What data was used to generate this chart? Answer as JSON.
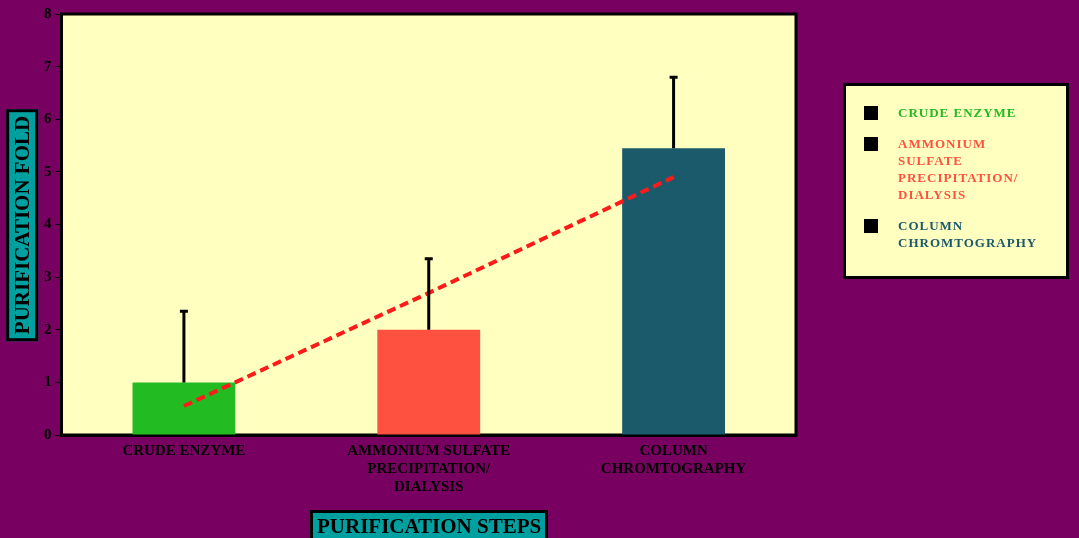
{
  "chart_data": {
    "type": "bar",
    "categories": [
      "CRUDE ENZYME",
      "AMMONIUM SULFATE PRECIPITATION/ DIALYSIS",
      "COLUMN CHROMTOGRAPHY"
    ],
    "series": [
      {
        "name": "CRUDE ENZYME",
        "color": "#22bb22",
        "values": [
          1,
          null,
          null
        ],
        "errors": [
          [
            1,
            2.35
          ],
          null,
          null
        ]
      },
      {
        "name": "AMMONIUM SULFATE PRECIPITATION/ DIALYSIS",
        "color": "#ff5040",
        "values": [
          null,
          2,
          null
        ],
        "errors": [
          null,
          [
            2,
            3.35
          ],
          null
        ]
      },
      {
        "name": "COLUMN CHROMTOGRAPHY",
        "color": "#1a5a6a",
        "values": [
          null,
          null,
          5.45
        ],
        "errors": [
          null,
          null,
          [
            5.45,
            6.8
          ]
        ]
      },
      {
        "type": "line",
        "color": "#ff1a1a",
        "values": [
          0.55,
          2.7,
          4.9
        ],
        "line_style": "dashed",
        "marker": "none"
      }
    ],
    "xlabel": "PURIFICATION STEPS",
    "ylabel": "PURIFICATION FOLD",
    "ylim": [
      0,
      8
    ],
    "yticks": [
      0,
      1,
      2,
      3,
      4,
      5,
      6,
      7,
      8
    ],
    "grid": false,
    "legend": "right"
  }
}
